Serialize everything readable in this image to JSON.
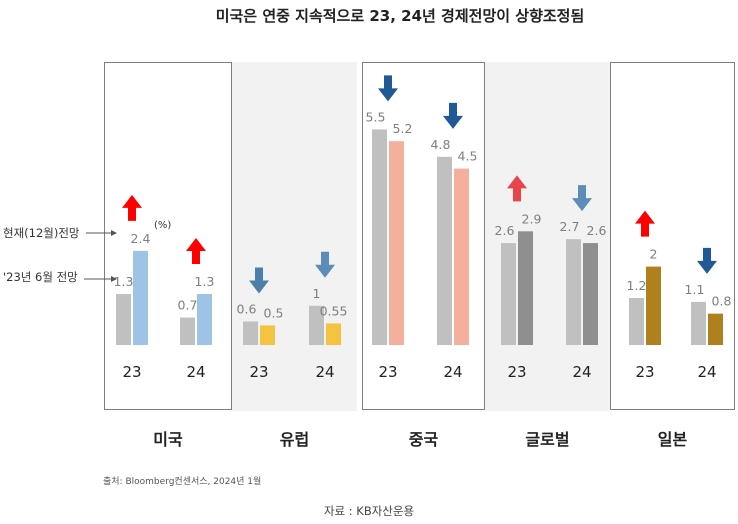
{
  "chart_data": {
    "type": "bar",
    "title": "미국은 연중 지속적으로 23, 24년 경제전망이 상향조정됨",
    "unit": "(%)",
    "legend": {
      "current": "현재(12월)전망",
      "previous": "'23년 6월 전망"
    },
    "series": [
      {
        "name": "'23년 6월 전망",
        "color": "#c0c0c0"
      },
      {
        "name": "현재(12월)전망"
      }
    ],
    "groups": [
      {
        "region": "미국",
        "boxed": true,
        "shaded": false,
        "current_color": "#9dc3e6",
        "years": [
          {
            "year": "23",
            "previous": 1.3,
            "current": 2.4,
            "previous_label": "1.3",
            "current_label": "2.4",
            "arrow": "up",
            "arrow_color": "#ff0000"
          },
          {
            "year": "24",
            "previous": 0.7,
            "current": 1.3,
            "previous_label": "0.7",
            "current_label": "1.3",
            "arrow": "up",
            "arrow_color": "#ff0000"
          }
        ]
      },
      {
        "region": "유럽",
        "boxed": false,
        "shaded": true,
        "current_color": "#f5c342",
        "years": [
          {
            "year": "23",
            "previous": 0.6,
            "current": 0.5,
            "previous_label": "0.6",
            "current_label": "0.5",
            "arrow": "down",
            "arrow_color": "#4e7fab"
          },
          {
            "year": "24",
            "previous": 1.0,
            "current": 0.55,
            "previous_label": "1",
            "current_label": "0.55",
            "arrow": "down",
            "arrow_color": "#5b8db8"
          }
        ]
      },
      {
        "region": "중국",
        "boxed": true,
        "shaded": false,
        "current_color": "#f4b09c",
        "years": [
          {
            "year": "23",
            "previous": 5.5,
            "current": 5.2,
            "previous_label": "5.5",
            "current_label": "5.2",
            "arrow": "down",
            "arrow_color": "#1f5a96"
          },
          {
            "year": "24",
            "previous": 4.8,
            "current": 4.5,
            "previous_label": "4.8",
            "current_label": "4.5",
            "arrow": "down",
            "arrow_color": "#1f5a96"
          }
        ]
      },
      {
        "region": "글로벌",
        "boxed": false,
        "shaded": true,
        "current_color": "#8f8f8f",
        "years": [
          {
            "year": "23",
            "previous": 2.6,
            "current": 2.9,
            "previous_label": "2.6",
            "current_label": "2.9",
            "arrow": "up",
            "arrow_color": "#e8444a"
          },
          {
            "year": "24",
            "previous": 2.7,
            "current": 2.6,
            "previous_label": "2.7",
            "current_label": "2.6",
            "arrow": "down",
            "arrow_color": "#5b8db8"
          }
        ]
      },
      {
        "region": "일본",
        "boxed": true,
        "shaded": false,
        "current_color": "#b07f1e",
        "years": [
          {
            "year": "23",
            "previous": 1.2,
            "current": 2.0,
            "previous_label": "1.2",
            "current_label": "2",
            "arrow": "up",
            "arrow_color": "#ff0000"
          },
          {
            "year": "24",
            "previous": 1.1,
            "current": 0.8,
            "previous_label": "1.1",
            "current_label": "0.8",
            "arrow": "down",
            "arrow_color": "#1f5a96"
          }
        ]
      }
    ],
    "source": "출처: Bloomberg컨센서스, 2024년 1월",
    "credit": "자료 : KB자산운용"
  }
}
